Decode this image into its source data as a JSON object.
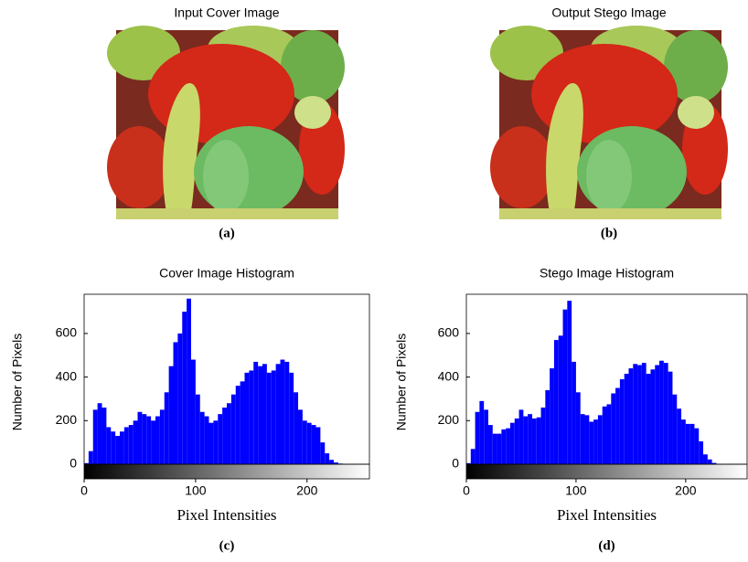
{
  "figures": [
    {
      "title": "Input Cover Image",
      "caption": "(a)"
    },
    {
      "title": "Output Stego Image",
      "caption": "(b)"
    }
  ],
  "chart_data": [
    {
      "type": "histogram",
      "title": "Cover Image Histogram",
      "caption": "(c)",
      "x_label": "Pixel Intensities",
      "y_label": "Number of Pixels",
      "color": "#0000ff",
      "bins": [
        0,
        4,
        8,
        12,
        16,
        20,
        24,
        28,
        32,
        36,
        40,
        44,
        48,
        52,
        56,
        60,
        64,
        68,
        72,
        76,
        80,
        84,
        88,
        92,
        96,
        100,
        104,
        108,
        112,
        116,
        120,
        124,
        128,
        132,
        136,
        140,
        144,
        148,
        152,
        156,
        160,
        164,
        168,
        172,
        176,
        180,
        184,
        188,
        192,
        196,
        200,
        204,
        208,
        212,
        216,
        220,
        224,
        228,
        232,
        236,
        240,
        244,
        248,
        252,
        256
      ],
      "values": [
        5,
        60,
        250,
        280,
        260,
        170,
        150,
        130,
        150,
        170,
        180,
        200,
        240,
        230,
        220,
        200,
        220,
        250,
        330,
        450,
        560,
        600,
        700,
        760,
        480,
        320,
        240,
        220,
        190,
        200,
        230,
        260,
        280,
        320,
        360,
        380,
        420,
        430,
        470,
        450,
        460,
        420,
        430,
        460,
        480,
        470,
        420,
        330,
        250,
        200,
        190,
        180,
        170,
        100,
        50,
        20,
        8,
        3,
        0,
        0,
        0,
        0,
        0,
        0
      ],
      "xlim": [
        0,
        256
      ],
      "ylim": [
        0,
        780
      ],
      "xticks": [
        0,
        100,
        200
      ],
      "yticks": [
        0,
        200,
        400,
        600
      ]
    },
    {
      "type": "histogram",
      "title": "Stego Image Histogram",
      "caption": "(d)",
      "x_label": "Pixel Intensities",
      "y_label": "Number of Pixels",
      "color": "#0000ff",
      "bins": [
        0,
        4,
        8,
        12,
        16,
        20,
        24,
        28,
        32,
        36,
        40,
        44,
        48,
        52,
        56,
        60,
        64,
        68,
        72,
        76,
        80,
        84,
        88,
        92,
        96,
        100,
        104,
        108,
        112,
        116,
        120,
        124,
        128,
        132,
        136,
        140,
        144,
        148,
        152,
        156,
        160,
        164,
        168,
        172,
        176,
        180,
        184,
        188,
        192,
        196,
        200,
        204,
        208,
        212,
        216,
        220,
        224,
        228,
        232,
        236,
        240,
        244,
        248,
        252,
        256
      ],
      "values": [
        5,
        70,
        240,
        290,
        250,
        180,
        140,
        140,
        160,
        165,
        190,
        210,
        250,
        220,
        230,
        210,
        215,
        260,
        340,
        440,
        570,
        590,
        710,
        750,
        470,
        330,
        230,
        225,
        195,
        205,
        225,
        265,
        275,
        325,
        350,
        390,
        415,
        440,
        460,
        455,
        465,
        415,
        435,
        455,
        475,
        465,
        425,
        320,
        255,
        205,
        185,
        185,
        165,
        105,
        45,
        22,
        6,
        2,
        0,
        0,
        0,
        0,
        0,
        0
      ],
      "xlim": [
        0,
        256
      ],
      "ylim": [
        0,
        780
      ],
      "xticks": [
        0,
        100,
        200
      ],
      "yticks": [
        0,
        200,
        400,
        600
      ]
    }
  ]
}
